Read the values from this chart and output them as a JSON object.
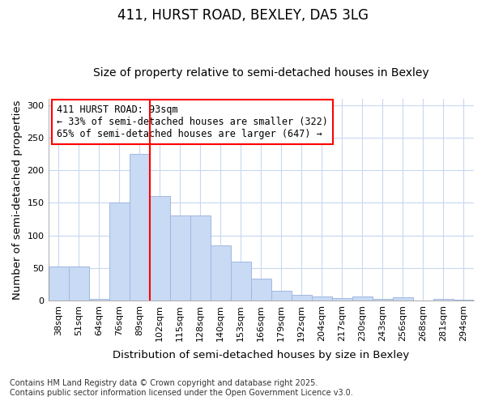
{
  "title": "411, HURST ROAD, BEXLEY, DA5 3LG",
  "subtitle": "Size of property relative to semi-detached houses in Bexley",
  "xlabel": "Distribution of semi-detached houses by size in Bexley",
  "ylabel": "Number of semi-detached properties",
  "bar_labels": [
    "38sqm",
    "51sqm",
    "64sqm",
    "76sqm",
    "89sqm",
    "102sqm",
    "115sqm",
    "128sqm",
    "140sqm",
    "153sqm",
    "166sqm",
    "179sqm",
    "192sqm",
    "204sqm",
    "217sqm",
    "230sqm",
    "243sqm",
    "256sqm",
    "268sqm",
    "281sqm",
    "294sqm"
  ],
  "bar_values": [
    52,
    52,
    2,
    150,
    225,
    160,
    130,
    130,
    85,
    60,
    33,
    15,
    8,
    6,
    4,
    6,
    2,
    5,
    0,
    2,
    1
  ],
  "bar_color": "#c8daf4",
  "bar_edge_color": "#a0b8e0",
  "bar_edge_width": 0.7,
  "red_line_index": 5,
  "annotation_title": "411 HURST ROAD: 93sqm",
  "annotation_line1": "← 33% of semi-detached houses are smaller (322)",
  "annotation_line2": "65% of semi-detached houses are larger (647) →",
  "ylim": [
    0,
    310
  ],
  "yticks": [
    0,
    50,
    100,
    150,
    200,
    250,
    300
  ],
  "footer_line1": "Contains HM Land Registry data © Crown copyright and database right 2025.",
  "footer_line2": "Contains public sector information licensed under the Open Government Licence v3.0.",
  "bg_color": "#ffffff",
  "plot_bg_color": "#ffffff",
  "grid_color": "#c8d8f0",
  "title_fontsize": 12,
  "subtitle_fontsize": 10,
  "axis_label_fontsize": 9.5,
  "tick_fontsize": 8,
  "annotation_fontsize": 8.5,
  "footer_fontsize": 7
}
